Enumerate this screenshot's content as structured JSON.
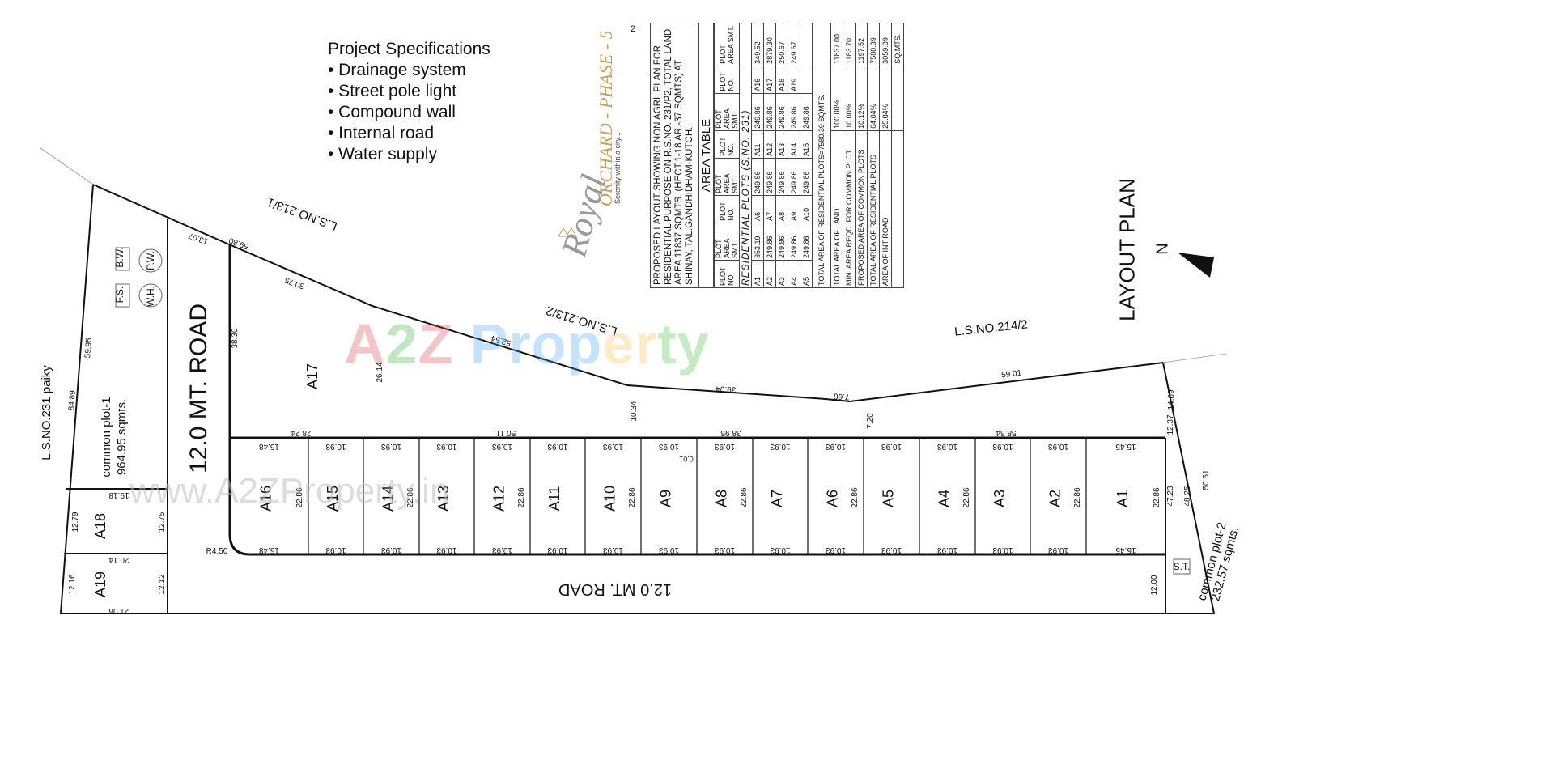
{
  "specs": {
    "title": "Project Specifications",
    "items": [
      "• Drainage system",
      "• Street pole light",
      "• Compound wall",
      "• Internal road",
      "• Water supply"
    ]
  },
  "logo": {
    "brand": "Royal",
    "name": "ORCHARD - PHASE - 5",
    "tagline": "Serenity within a city..."
  },
  "page_number": "2",
  "table": {
    "description": "PROPOSED LAYOUT SHOWING NON AGRI. PLAN FOR RESIDENTIAL PURPOSE ON R.S.NO. 231/P2, TOTAL LAND AREA 11837 SQMTS. (HECT.1-18 AR.-37 SQMTS) AT SHINAY, TAL.GANDHIDHAM-KUTCH.",
    "title": "AREA TABLE",
    "col_plot": "PLOT NO.",
    "col_area": "PLOT AREA SMT.",
    "subtitle": "RESIDENTIAL PLOTS (S.NO. 231)",
    "rows": [
      [
        "A1",
        "353.19",
        "A6",
        "249.86",
        "A11",
        "249.86",
        "A16",
        "349.52"
      ],
      [
        "A2",
        "249.86",
        "A7",
        "249.86",
        "A12",
        "249.86",
        "A17",
        "2879.30"
      ],
      [
        "A3",
        "249.86",
        "A8",
        "249.86",
        "A13",
        "249.86",
        "A18",
        "250.67"
      ],
      [
        "A4",
        "249.86",
        "A9",
        "249.86",
        "A14",
        "249.86",
        "A19",
        "249.67"
      ],
      [
        "A5",
        "249.86",
        "A10",
        "249.86",
        "A15",
        "249.86",
        "",
        ""
      ]
    ],
    "total_residential": "TOTAL AREA OF RESIDENTIAL PLOTS=7580.39 SQMTS.",
    "summary": [
      [
        "TOTAL AREA OF LAND",
        "100.00%",
        "11837.00"
      ],
      [
        "MIN. AREA REQD. FOR COMMON PLOT",
        "10.00%",
        "1183.70"
      ],
      [
        "PROPOSED AREA OF COMMON PLOTS",
        "10.12%",
        "1197.52"
      ],
      [
        "TOTAL AREA OF RESIDENTIAL PLOTS",
        "64.04%",
        "7580.39"
      ],
      [
        "AREA OF INT ROAD",
        "25.84%",
        "3059.09"
      ],
      [
        "",
        "",
        "SQ.MTS."
      ]
    ]
  },
  "layout_title": "LAYOUT PLAN",
  "north": "N",
  "watermark": {
    "main": "A2Z Property",
    "url": "www.A2ZProperty.in"
  },
  "plots_row": {
    "labels": [
      "A16",
      "A15",
      "A14",
      "A13",
      "A12",
      "A11",
      "A10",
      "A9",
      "A8",
      "A7",
      "A6",
      "A5",
      "A4",
      "A3",
      "A2",
      "A1"
    ],
    "widths": [
      "15.48",
      "10.93",
      "10.93",
      "10.93",
      "10.93",
      "10.93",
      "10.93",
      "10.93",
      "10.93",
      "10.93",
      "10.93",
      "10.93",
      "10.93",
      "10.93",
      "10.93",
      "15.45"
    ],
    "depth": "22.86"
  },
  "labels": {
    "road_vertical": "12.0 MT. ROAD",
    "road_bottom": "12.0 MT. ROAD",
    "ls_231": "L.S.NO.231 paiky",
    "ls_213_1": "L.S.NO.213/1",
    "ls_213_2": "L.S.NO.213/2",
    "ls_214_2": "L.S.NO.214/2",
    "common1": "common plot-1",
    "common1_area": "964.95 sqmts.",
    "common2": "common plot-2",
    "common2_area": "232.57 sqmts.",
    "bw": "B.W.",
    "pw": "P.W.",
    "fs": "F.S.",
    "wh": "W.H.",
    "st": "S.T.",
    "a17": "A17",
    "a18": "A18",
    "a19": "A19",
    "r": "R4.50",
    "odd": "0.01",
    "d_1307": "13.07",
    "d_5980": "59.80",
    "d_3075": "30.75",
    "d_5254": "52.54",
    "d_3904": "39.04",
    "d_766": "7.66",
    "d_5901": "59.01",
    "d_5995": "59.95",
    "d_8489": "84.89",
    "d_3830": "38.30",
    "d_2614": "26.14",
    "d_1034": "10.34",
    "d_720": "7.20",
    "d_1469": "14.69",
    "d_1237": "12.37",
    "d_2824": "28.24",
    "d_5011": "50.11",
    "d_3895": "38.95",
    "d_5854": "58.54",
    "d_1918": "19.18",
    "d_2014": "20.14",
    "d_2106": "21.06",
    "d_1279": "12.79",
    "d_1275": "12.75",
    "d_1216": "12.16",
    "d_1212": "12.12",
    "d_4723": "47.23",
    "d_4825": "48.25",
    "d_5061": "50.61",
    "d_1200": "12.00"
  }
}
